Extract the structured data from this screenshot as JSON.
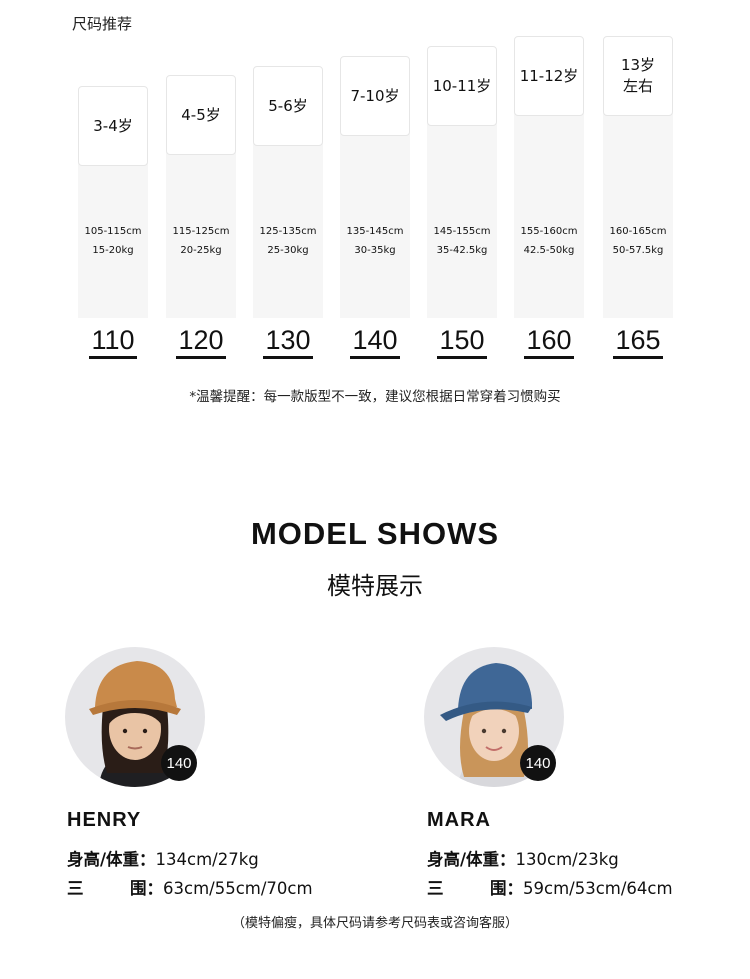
{
  "size_guide": {
    "title": "尺码推荐",
    "columns": [
      {
        "age": "3-4岁",
        "height": "105-115cm",
        "weight": "15-20kg",
        "size": "110"
      },
      {
        "age": "4-5岁",
        "height": "115-125cm",
        "weight": "20-25kg",
        "size": "120"
      },
      {
        "age": "5-6岁",
        "height": "125-135cm",
        "weight": "25-30kg",
        "size": "130"
      },
      {
        "age": "7-10岁",
        "height": "135-145cm",
        "weight": "30-35kg",
        "size": "140"
      },
      {
        "age": "10-11岁",
        "height": "145-155cm",
        "weight": "35-42.5kg",
        "size": "150"
      },
      {
        "age": "11-12岁",
        "height": "155-160cm",
        "weight": "42.5-50kg",
        "size": "160"
      },
      {
        "age": "13岁\n左右",
        "height": "160-165cm",
        "weight": "50-57.5kg",
        "size": "165"
      }
    ],
    "note": "*温馨提醒：每一款版型不一致，建议您根据日常穿着习惯购买"
  },
  "models_section": {
    "title": "MODEL SHOWS",
    "subtitle": "模特展示",
    "models": [
      {
        "name": "HENRY",
        "size_badge": "140",
        "label_hw": "身高/体重：",
        "value_hw": "134cm/27kg",
        "label_m1": "三",
        "label_m2": "围：",
        "value_m": "63cm/55cm/70cm",
        "cap_color": "#c98a4a",
        "hair_color": "#2a1d17"
      },
      {
        "name": "MARA",
        "size_badge": "140",
        "label_hw": "身高/体重：",
        "value_hw": "130cm/23kg",
        "label_m1": "三",
        "label_m2": "围：",
        "value_m": "59cm/53cm/64cm",
        "cap_color": "#3f6796",
        "hair_color": "#c9955a"
      }
    ],
    "footnote": "（模特偏瘦，具体尺码请参考尺码表或咨询客服）"
  }
}
